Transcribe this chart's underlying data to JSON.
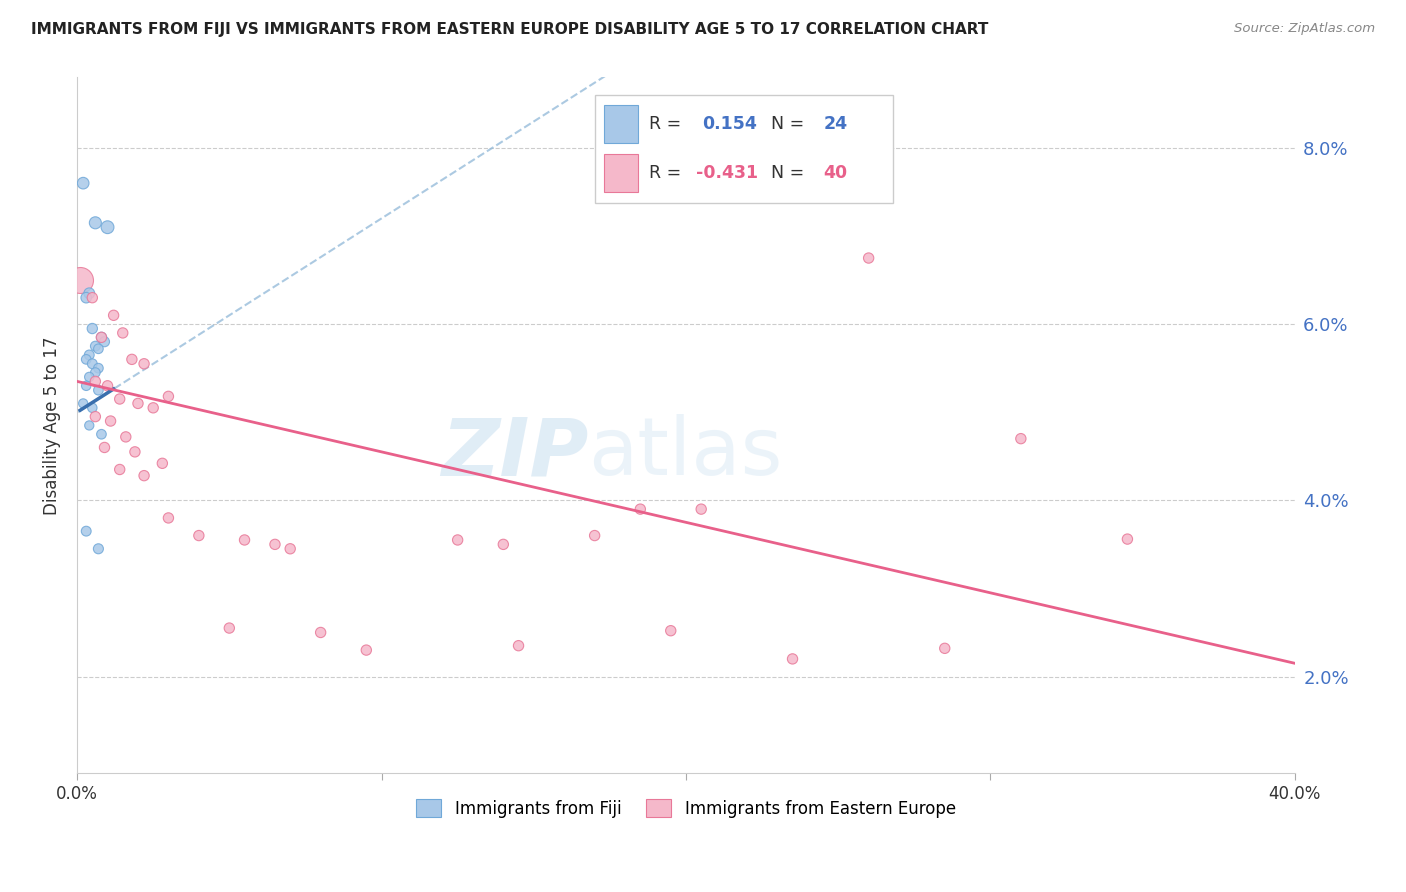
{
  "title": "IMMIGRANTS FROM FIJI VS IMMIGRANTS FROM EASTERN EUROPE DISABILITY AGE 5 TO 17 CORRELATION CHART",
  "source": "Source: ZipAtlas.com",
  "ylabel": "Disability Age 5 to 17",
  "y_ticks": [
    2.0,
    4.0,
    6.0,
    8.0
  ],
  "xlim": [
    0.0,
    0.4
  ],
  "ylim": [
    0.9,
    8.8
  ],
  "fiji_color": "#a8c8e8",
  "fiji_edge": "#70a8d8",
  "eastern_color": "#f5b8ca",
  "eastern_edge": "#e87898",
  "fiji_line_color": "#3a6fad",
  "eastern_line_color": "#e8608a",
  "dashed_line_color": "#90b8d8",
  "fiji_R": 0.154,
  "fiji_N": 24,
  "eastern_R": -0.431,
  "eastern_N": 40,
  "watermark_zip": "ZIP",
  "watermark_atlas": "atlas",
  "fiji_points": [
    [
      0.002,
      7.6
    ],
    [
      0.006,
      7.15
    ],
    [
      0.01,
      7.1
    ],
    [
      0.004,
      6.35
    ],
    [
      0.003,
      6.3
    ],
    [
      0.005,
      5.95
    ],
    [
      0.008,
      5.85
    ],
    [
      0.009,
      5.8
    ],
    [
      0.006,
      5.75
    ],
    [
      0.007,
      5.72
    ],
    [
      0.004,
      5.65
    ],
    [
      0.003,
      5.6
    ],
    [
      0.005,
      5.55
    ],
    [
      0.007,
      5.5
    ],
    [
      0.006,
      5.45
    ],
    [
      0.004,
      5.4
    ],
    [
      0.003,
      5.3
    ],
    [
      0.007,
      5.25
    ],
    [
      0.002,
      5.1
    ],
    [
      0.005,
      5.05
    ],
    [
      0.004,
      4.85
    ],
    [
      0.008,
      4.75
    ],
    [
      0.003,
      3.65
    ],
    [
      0.007,
      3.45
    ]
  ],
  "fiji_sizes": [
    70,
    75,
    85,
    60,
    58,
    55,
    55,
    52,
    50,
    48,
    50,
    48,
    50,
    48,
    48,
    46,
    46,
    48,
    44,
    46,
    44,
    48,
    50,
    52
  ],
  "eastern_big_point": [
    0.001,
    6.5
  ],
  "eastern_big_size": 350,
  "eastern_points": [
    [
      0.005,
      6.3
    ],
    [
      0.008,
      5.85
    ],
    [
      0.012,
      6.1
    ],
    [
      0.015,
      5.9
    ],
    [
      0.018,
      5.6
    ],
    [
      0.022,
      5.55
    ],
    [
      0.006,
      5.35
    ],
    [
      0.01,
      5.3
    ],
    [
      0.014,
      5.15
    ],
    [
      0.02,
      5.1
    ],
    [
      0.025,
      5.05
    ],
    [
      0.03,
      5.18
    ],
    [
      0.006,
      4.95
    ],
    [
      0.011,
      4.9
    ],
    [
      0.016,
      4.72
    ],
    [
      0.009,
      4.6
    ],
    [
      0.019,
      4.55
    ],
    [
      0.028,
      4.42
    ],
    [
      0.014,
      4.35
    ],
    [
      0.022,
      4.28
    ],
    [
      0.03,
      3.8
    ],
    [
      0.04,
      3.6
    ],
    [
      0.055,
      3.55
    ],
    [
      0.065,
      3.5
    ],
    [
      0.07,
      3.45
    ],
    [
      0.05,
      2.55
    ],
    [
      0.08,
      2.5
    ],
    [
      0.095,
      2.3
    ],
    [
      0.26,
      6.75
    ],
    [
      0.31,
      4.7
    ],
    [
      0.17,
      3.6
    ],
    [
      0.14,
      3.5
    ],
    [
      0.145,
      2.35
    ],
    [
      0.195,
      2.52
    ],
    [
      0.205,
      3.9
    ],
    [
      0.285,
      2.32
    ],
    [
      0.185,
      3.9
    ],
    [
      0.235,
      2.2
    ],
    [
      0.125,
      3.55
    ],
    [
      0.345,
      3.56
    ]
  ],
  "eastern_sizes": [
    55,
    55,
    55,
    55,
    55,
    55,
    55,
    55,
    55,
    55,
    55,
    55,
    55,
    55,
    55,
    55,
    55,
    55,
    55,
    55,
    55,
    55,
    55,
    55,
    55,
    55,
    55,
    55,
    55,
    55,
    55,
    55,
    55,
    55,
    55,
    55,
    55,
    55,
    55,
    55
  ],
  "fiji_slope": 22.0,
  "fiji_intercept": 5.0,
  "fiji_solid_xrange": [
    0.001,
    0.012
  ],
  "eastern_slope": -8.0,
  "eastern_intercept": 5.35
}
